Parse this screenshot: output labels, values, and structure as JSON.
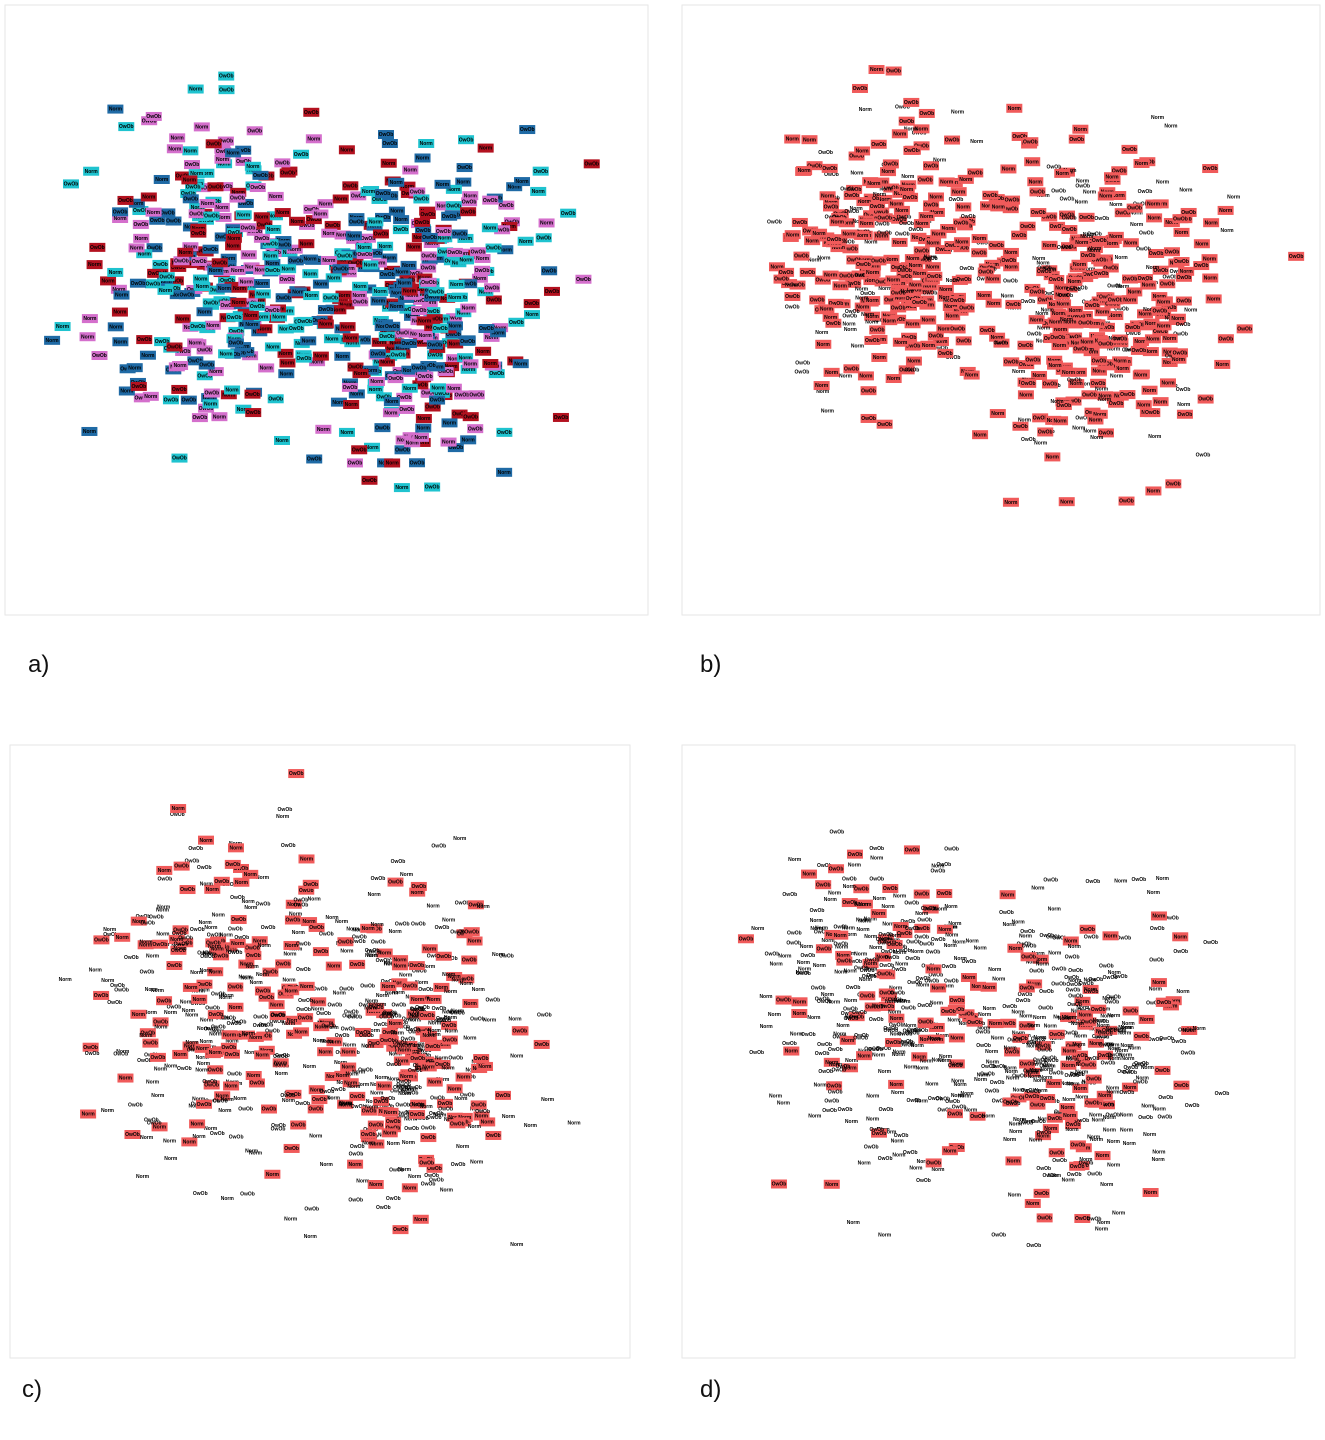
{
  "panels": [
    {
      "caption": "a)",
      "labels": [
        "Norm",
        "OwOb"
      ],
      "box_colors": [
        "#1f6aa5",
        "#1fc3cf",
        "#b3111f",
        "#d46fcc"
      ]
    },
    {
      "caption": "b)",
      "labels": [
        "Norm",
        "OwOb"
      ],
      "box_colors": [
        "#f05a5a",
        "#f05a5a",
        "#f05a5a",
        "none"
      ]
    },
    {
      "caption": "c)",
      "labels": [
        "Norm",
        "OwOb"
      ],
      "box_colors": [
        "#f05a5a",
        "none",
        "none"
      ]
    },
    {
      "caption": "d)",
      "labels": [
        "Norm",
        "OwOb"
      ],
      "box_colors": [
        "#f05a5a",
        "none",
        "none",
        "none"
      ]
    }
  ]
}
